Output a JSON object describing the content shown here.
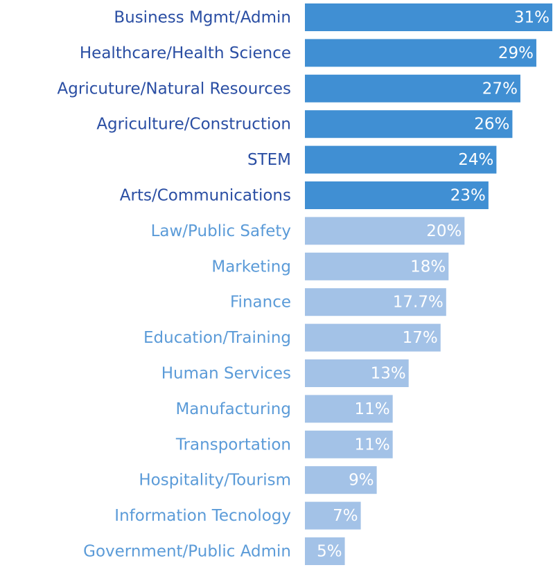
{
  "chart_data": {
    "type": "bar",
    "orientation": "horizontal",
    "categories": [
      "Business Mgmt/Admin",
      "Healthcare/Health Science",
      "Agricuture/Natural Resources",
      "Agriculture/Construction",
      "STEM",
      "Arts/Communications",
      "Law/Public Safety",
      "Marketing",
      "Finance",
      "Education/Training",
      "Human Services",
      "Manufacturing",
      "Transportation",
      "Hospitality/Tourism",
      "Information Tecnology",
      "Government/Public Admin"
    ],
    "values": [
      31,
      29,
      27,
      26,
      24,
      23,
      20,
      18,
      17.7,
      17,
      13,
      11,
      11,
      9,
      7,
      5
    ],
    "value_labels": [
      "31%",
      "29%",
      "27%",
      "26%",
      "24%",
      "23%",
      "20%",
      "18%",
      "17.7%",
      "17%",
      "13%",
      "11%",
      "11%",
      "9%",
      "7%",
      "5%"
    ],
    "colors": [
      "#408fd3",
      "#408fd3",
      "#408fd3",
      "#408fd3",
      "#408fd3",
      "#408fd3",
      "#a3c2e7",
      "#a3c2e7",
      "#a3c2e7",
      "#a3c2e7",
      "#a3c2e7",
      "#a3c2e7",
      "#a3c2e7",
      "#a3c2e7",
      "#a3c2e7",
      "#a3c2e7"
    ],
    "label_colors": [
      "#2a4ea3",
      "#2a4ea3",
      "#2a4ea3",
      "#2a4ea3",
      "#2a4ea3",
      "#2a4ea3",
      "#5b9bd8",
      "#5b9bd8",
      "#5b9bd8",
      "#5b9bd8",
      "#5b9bd8",
      "#5b9bd8",
      "#5b9bd8",
      "#5b9bd8",
      "#5b9bd8",
      "#5b9bd8"
    ],
    "xlim": [
      0,
      31
    ]
  }
}
